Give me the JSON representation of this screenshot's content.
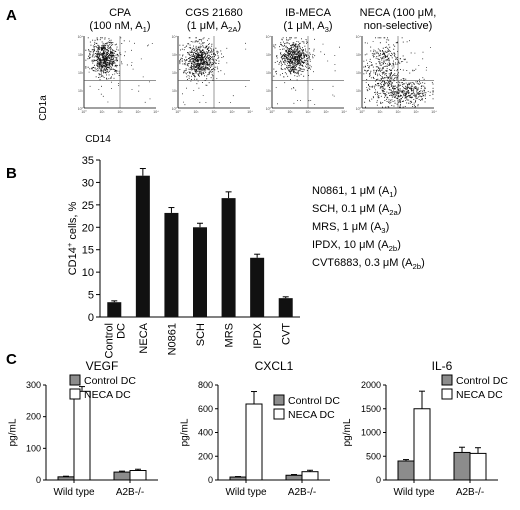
{
  "panels": {
    "A": "A",
    "B": "B",
    "C": "C"
  },
  "panel_a": {
    "ylabel": "CD1a",
    "xlabel": "CD14",
    "plots": [
      {
        "title_line1": "CPA",
        "title_line2": "(100 nM, A",
        "title_sub": "1",
        "title_end": ")"
      },
      {
        "title_line1": "CGS 21680",
        "title_line2": "(1 μM, A",
        "title_sub": "2A",
        "title_end": ")"
      },
      {
        "title_line1": "IB-MECA",
        "title_line2": "(1 μM, A",
        "title_sub": "3",
        "title_end": ")"
      },
      {
        "title_line1": "NECA (100 μM,",
        "title_line2": "non-selective",
        "title_sub": "",
        "title_end": ")"
      }
    ],
    "tick_labels": [
      "10⁰",
      "10¹",
      "10²",
      "10³",
      "10⁴"
    ]
  },
  "chart_data": [
    {
      "type": "scatter",
      "panel": "A",
      "title": "",
      "xlabel": "CD14",
      "ylabel": "CD1a",
      "scale": "log",
      "xlim": [
        1,
        10000
      ],
      "ylim": [
        1,
        10000
      ],
      "plots": [
        "CPA (100 nM, A1)",
        "CGS 21680 (1 μM, A2A)",
        "IB-MECA (1 μM, A3)",
        "NECA (100 μM, non-selective)"
      ]
    },
    {
      "type": "bar",
      "panel": "B",
      "title": "",
      "ylabel": "CD14⁺ cells, %",
      "ylabel_main": "CD14",
      "ylabel_sup": "+",
      "ylabel_end": " cells, %",
      "ylim": [
        0,
        35
      ],
      "yticks": [
        0,
        5,
        10,
        15,
        20,
        25,
        30,
        35
      ],
      "categories": [
        "Control DC",
        "NECA",
        "N0861",
        "SCH",
        "MRS",
        "IPDX",
        "CVT"
      ],
      "category_lines": [
        [
          "Control",
          "DC"
        ],
        [
          "NECA"
        ],
        [
          "N0861"
        ],
        [
          "SCH"
        ],
        [
          "MRS"
        ],
        [
          "IPDX"
        ],
        [
          "CVT"
        ]
      ],
      "values": [
        3.3,
        31.5,
        23.2,
        20.0,
        26.5,
        13.2,
        4.2
      ],
      "errors": [
        0.3,
        1.6,
        1.2,
        0.9,
        1.4,
        0.8,
        0.3
      ],
      "legend": [
        {
          "main": "N0861, 1 μM (A",
          "sub": "1",
          "end": ")"
        },
        {
          "main": "SCH, 0.1 μM (A",
          "sub": "2a",
          "end": ")"
        },
        {
          "main": "MRS, 1 μM (A",
          "sub": "3",
          "end": ")"
        },
        {
          "main": "IPDX, 10 μM (A",
          "sub": "2b",
          "end": ")"
        },
        {
          "main": "CVT6883, 0.3 μM (A",
          "sub": "2b",
          "end": ")"
        }
      ],
      "bar_color": "#111111"
    },
    {
      "type": "bar",
      "panel": "C",
      "title": "VEGF",
      "ylabel": "pg/mL",
      "ylim": [
        0,
        300
      ],
      "yticks": [
        0,
        100,
        200,
        300
      ],
      "categories": [
        "Wild type",
        "A2B-/-"
      ],
      "series": [
        {
          "name": "Control DC",
          "values": [
            10,
            25
          ],
          "errors": [
            2,
            3
          ],
          "color": "#8c8c8c"
        },
        {
          "name": "NECA DC",
          "values": [
            280,
            30
          ],
          "errors": [
            15,
            4
          ],
          "color": "#ffffff"
        }
      ]
    },
    {
      "type": "bar",
      "panel": "C",
      "title": "CXCL1",
      "ylabel": "pg/mL",
      "ylim": [
        0,
        800
      ],
      "yticks": [
        0,
        200,
        400,
        600,
        800
      ],
      "categories": [
        "Wild type",
        "A2B-/-"
      ],
      "series": [
        {
          "name": "Control DC",
          "values": [
            25,
            40
          ],
          "errors": [
            4,
            6
          ],
          "color": "#8c8c8c"
        },
        {
          "name": "NECA DC",
          "values": [
            640,
            70
          ],
          "errors": [
            105,
            12
          ],
          "color": "#ffffff"
        }
      ]
    },
    {
      "type": "bar",
      "panel": "C",
      "title": "IL-6",
      "ylabel": "pg/mL",
      "ylim": [
        0,
        2000
      ],
      "yticks": [
        0,
        500,
        1000,
        1500,
        2000
      ],
      "categories": [
        "Wild type",
        "A2B-/-"
      ],
      "series": [
        {
          "name": "Control DC",
          "values": [
            400,
            580
          ],
          "errors": [
            30,
            110
          ],
          "color": "#8c8c8c"
        },
        {
          "name": "NECA DC",
          "values": [
            1500,
            560
          ],
          "errors": [
            370,
            120
          ],
          "color": "#ffffff"
        }
      ]
    }
  ]
}
